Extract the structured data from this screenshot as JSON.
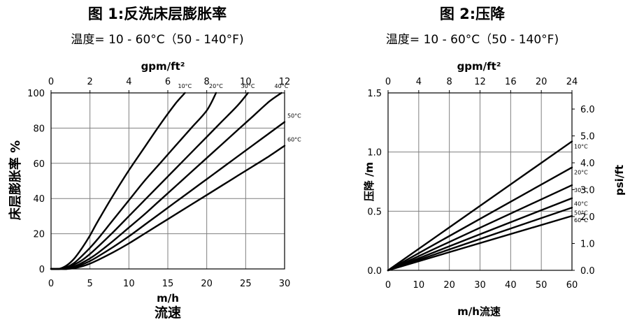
{
  "chart_data": [
    {
      "type": "line",
      "title": "图 1:反洗床层膨胀率",
      "subtitle": "温度= 10 - 60°C（50 - 140°F)",
      "xlabel": "m/h",
      "xlabel2": "流速",
      "x2label": "gpm/ft²",
      "ylabel": "床层膨胀率 %",
      "xlim": [
        0,
        30
      ],
      "ylim": [
        0,
        100
      ],
      "x2lim": [
        0,
        12
      ],
      "xticks": [
        0,
        5,
        10,
        15,
        20,
        25,
        30
      ],
      "yticks": [
        0,
        20,
        40,
        60,
        80,
        100
      ],
      "x2ticks": [
        0,
        2,
        4,
        6,
        8,
        10,
        12
      ],
      "grid": true,
      "series": [
        {
          "name": "10°C",
          "label_at": "top",
          "points": [
            [
              0,
              0
            ],
            [
              1,
              0
            ],
            [
              2,
              2
            ],
            [
              3,
              6
            ],
            [
              4,
              12
            ],
            [
              5,
              19
            ],
            [
              6,
              27
            ],
            [
              8,
              42
            ],
            [
              10,
              56
            ],
            [
              12,
              69
            ],
            [
              14,
              82
            ],
            [
              16,
              94
            ],
            [
              17.2,
              100
            ]
          ]
        },
        {
          "name": "20°C",
          "label_at": "top",
          "points": [
            [
              0,
              0
            ],
            [
              1,
              0
            ],
            [
              2,
              1
            ],
            [
              3,
              3.5
            ],
            [
              4,
              7.5
            ],
            [
              5,
              12
            ],
            [
              6,
              17
            ],
            [
              8,
              28
            ],
            [
              10,
              39
            ],
            [
              12,
              50
            ],
            [
              14,
              60
            ],
            [
              16,
              70
            ],
            [
              18,
              80
            ],
            [
              20,
              90
            ],
            [
              21.2,
              100
            ]
          ]
        },
        {
          "name": "30°C",
          "label_at": "top",
          "points": [
            [
              0,
              0
            ],
            [
              1,
              0
            ],
            [
              2,
              0.5
            ],
            [
              3,
              2.5
            ],
            [
              4,
              5
            ],
            [
              5,
              8.5
            ],
            [
              6,
              12.5
            ],
            [
              8,
              21
            ],
            [
              10,
              30
            ],
            [
              12,
              39
            ],
            [
              14,
              48
            ],
            [
              16,
              57
            ],
            [
              18,
              66
            ],
            [
              20,
              75
            ],
            [
              22,
              84
            ],
            [
              24,
              93
            ],
            [
              25.3,
              100
            ]
          ]
        },
        {
          "name": "40°C",
          "label_at": "top",
          "points": [
            [
              0,
              0
            ],
            [
              1,
              0
            ],
            [
              2,
              0.5
            ],
            [
              3,
              1.5
            ],
            [
              4,
              3.5
            ],
            [
              5,
              6
            ],
            [
              6,
              9
            ],
            [
              8,
              16
            ],
            [
              10,
              23.5
            ],
            [
              12,
              31
            ],
            [
              14,
              39
            ],
            [
              16,
              47
            ],
            [
              18,
              55
            ],
            [
              20,
              63
            ],
            [
              22,
              71
            ],
            [
              24,
              79
            ],
            [
              26,
              87
            ],
            [
              28,
              95
            ],
            [
              29.6,
              100
            ]
          ]
        },
        {
          "name": "50°C",
          "label_at": "right",
          "points": [
            [
              0,
              0
            ],
            [
              1,
              0
            ],
            [
              2,
              0
            ],
            [
              3,
              1
            ],
            [
              4,
              2.5
            ],
            [
              5,
              4.5
            ],
            [
              6,
              7
            ],
            [
              8,
              12.5
            ],
            [
              10,
              18.5
            ],
            [
              12,
              25
            ],
            [
              14,
              31.5
            ],
            [
              16,
              38
            ],
            [
              18,
              44.5
            ],
            [
              20,
              51
            ],
            [
              22,
              57.5
            ],
            [
              24,
              64
            ],
            [
              26,
              70.5
            ],
            [
              28,
              77
            ],
            [
              30,
              83.5
            ]
          ]
        },
        {
          "name": "60°C",
          "label_at": "right",
          "points": [
            [
              0,
              0
            ],
            [
              1,
              0
            ],
            [
              2,
              0
            ],
            [
              3,
              0.5
            ],
            [
              4,
              1.5
            ],
            [
              5,
              3
            ],
            [
              6,
              5
            ],
            [
              8,
              9.5
            ],
            [
              10,
              14.5
            ],
            [
              12,
              20
            ],
            [
              14,
              25.5
            ],
            [
              16,
              31
            ],
            [
              18,
              36.5
            ],
            [
              20,
              42
            ],
            [
              22,
              47.5
            ],
            [
              24,
              53
            ],
            [
              26,
              58.5
            ],
            [
              28,
              64
            ],
            [
              30,
              70
            ]
          ]
        }
      ]
    },
    {
      "type": "line",
      "title": "图 2:压降",
      "subtitle": "温度= 10 - 60°C（50 - 140°F)",
      "xlabel": "m/h流速",
      "x2label": "gpm/ft²",
      "ylabel": "压降 /m",
      "y2label": "psi/ft",
      "xlim": [
        0,
        60
      ],
      "ylim": [
        0,
        1.5
      ],
      "x2lim": [
        0,
        24
      ],
      "y2lim": [
        0,
        6.6
      ],
      "xticks": [
        0,
        10,
        20,
        30,
        40,
        50,
        60
      ],
      "yticks": [
        "0.0",
        "0.5",
        "1.0",
        "1.5"
      ],
      "x2ticks": [
        0,
        4,
        8,
        12,
        16,
        20,
        24
      ],
      "y2ticks": [
        "0.0",
        "1.0",
        "2.0",
        "3.0",
        "4.0",
        "5.0",
        "6.0"
      ],
      "grid": true,
      "series": [
        {
          "name": "10°C",
          "points": [
            [
              0,
              0
            ],
            [
              60,
              1.09
            ]
          ]
        },
        {
          "name": "20°C",
          "points": [
            [
              0,
              0
            ],
            [
              60,
              0.87
            ]
          ]
        },
        {
          "name": "30°C",
          "points": [
            [
              0,
              0
            ],
            [
              60,
              0.72
            ]
          ]
        },
        {
          "name": "40°C",
          "points": [
            [
              0,
              0
            ],
            [
              60,
              0.61
            ]
          ]
        },
        {
          "name": "50°C",
          "points": [
            [
              0,
              0
            ],
            [
              60,
              0.53
            ]
          ]
        },
        {
          "name": "60°C",
          "points": [
            [
              0,
              0
            ],
            [
              60,
              0.46
            ]
          ]
        }
      ]
    }
  ]
}
